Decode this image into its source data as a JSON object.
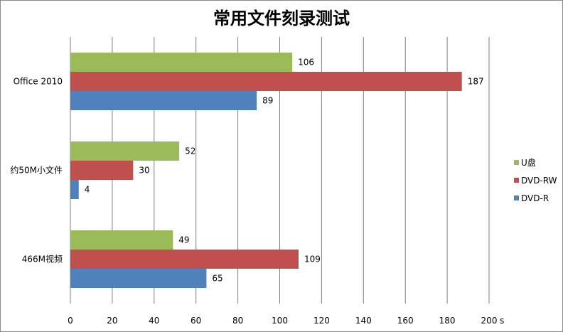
{
  "chart_data": {
    "type": "bar",
    "orientation": "horizontal",
    "title": "常用文件刻录测试",
    "xlabel": "s",
    "ylabel": "",
    "categories": [
      "Office 2010",
      "约50M小文件",
      "466M视频"
    ],
    "series": [
      {
        "name": "U盘",
        "color": "#9bbb59",
        "values": [
          106,
          52,
          49
        ]
      },
      {
        "name": "DVD-RW",
        "color": "#c0504d",
        "values": [
          187,
          30,
          109
        ]
      },
      {
        "name": "DVD-R",
        "color": "#4f81bd",
        "values": [
          89,
          4,
          65
        ]
      }
    ],
    "xlim": [
      0,
      200
    ],
    "ticks": [
      "0",
      "20",
      "40",
      "60",
      "80",
      "100",
      "120",
      "140",
      "160",
      "180",
      "200"
    ],
    "grid": true,
    "legend_position": "right"
  }
}
